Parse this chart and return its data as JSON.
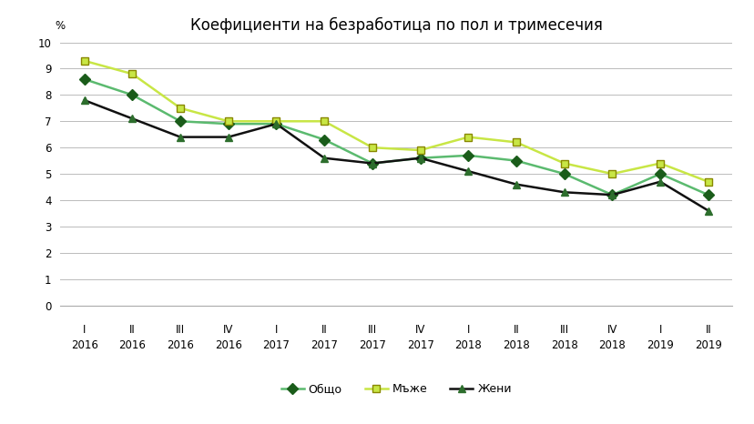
{
  "title": "Коефициенти на безработица по пол и тримесечия",
  "ylabel": "%",
  "x_top_labels": [
    "I",
    "II",
    "III",
    "IV",
    "I",
    "II",
    "III",
    "IV",
    "I",
    "II",
    "III",
    "IV",
    "I",
    "II"
  ],
  "x_bot_labels": [
    "2016",
    "2016",
    "2016",
    "2016",
    "2017",
    "2017",
    "2017",
    "2017",
    "2018",
    "2018",
    "2018",
    "2018",
    "2019",
    "2019"
  ],
  "series_order": [
    "Общо",
    "Мъже",
    "Жени"
  ],
  "series": {
    "Общо": {
      "values": [
        8.6,
        8.0,
        7.0,
        6.9,
        6.9,
        6.3,
        5.4,
        5.6,
        5.7,
        5.5,
        5.0,
        4.2,
        5.0,
        4.2
      ],
      "line_color": "#5bba6f",
      "marker": "D",
      "marker_facecolor": "#1a5c1a",
      "marker_edgecolor": "#1a5c1a",
      "linewidth": 1.8,
      "markersize": 6
    },
    "Мъже": {
      "values": [
        9.3,
        8.8,
        7.5,
        7.0,
        7.0,
        7.0,
        6.0,
        5.9,
        6.4,
        6.2,
        5.4,
        5.0,
        5.4,
        4.7
      ],
      "line_color": "#c8e645",
      "marker": "s",
      "marker_facecolor": "#c8e645",
      "marker_edgecolor": "#888800",
      "linewidth": 1.8,
      "markersize": 6
    },
    "Жени": {
      "values": [
        7.8,
        7.1,
        6.4,
        6.4,
        6.9,
        5.6,
        5.4,
        5.6,
        5.1,
        4.6,
        4.3,
        4.2,
        4.7,
        3.6
      ],
      "line_color": "#111111",
      "marker": "^",
      "marker_facecolor": "#2d6e2d",
      "marker_edgecolor": "#2d6e2d",
      "linewidth": 1.8,
      "markersize": 6
    }
  },
  "ylim": [
    0,
    10
  ],
  "yticks": [
    0,
    1,
    2,
    3,
    4,
    5,
    6,
    7,
    8,
    9,
    10
  ],
  "background_color": "#ffffff",
  "grid_color": "#bbbbbb",
  "title_fontsize": 12,
  "axis_fontsize": 8.5,
  "legend_fontsize": 9
}
